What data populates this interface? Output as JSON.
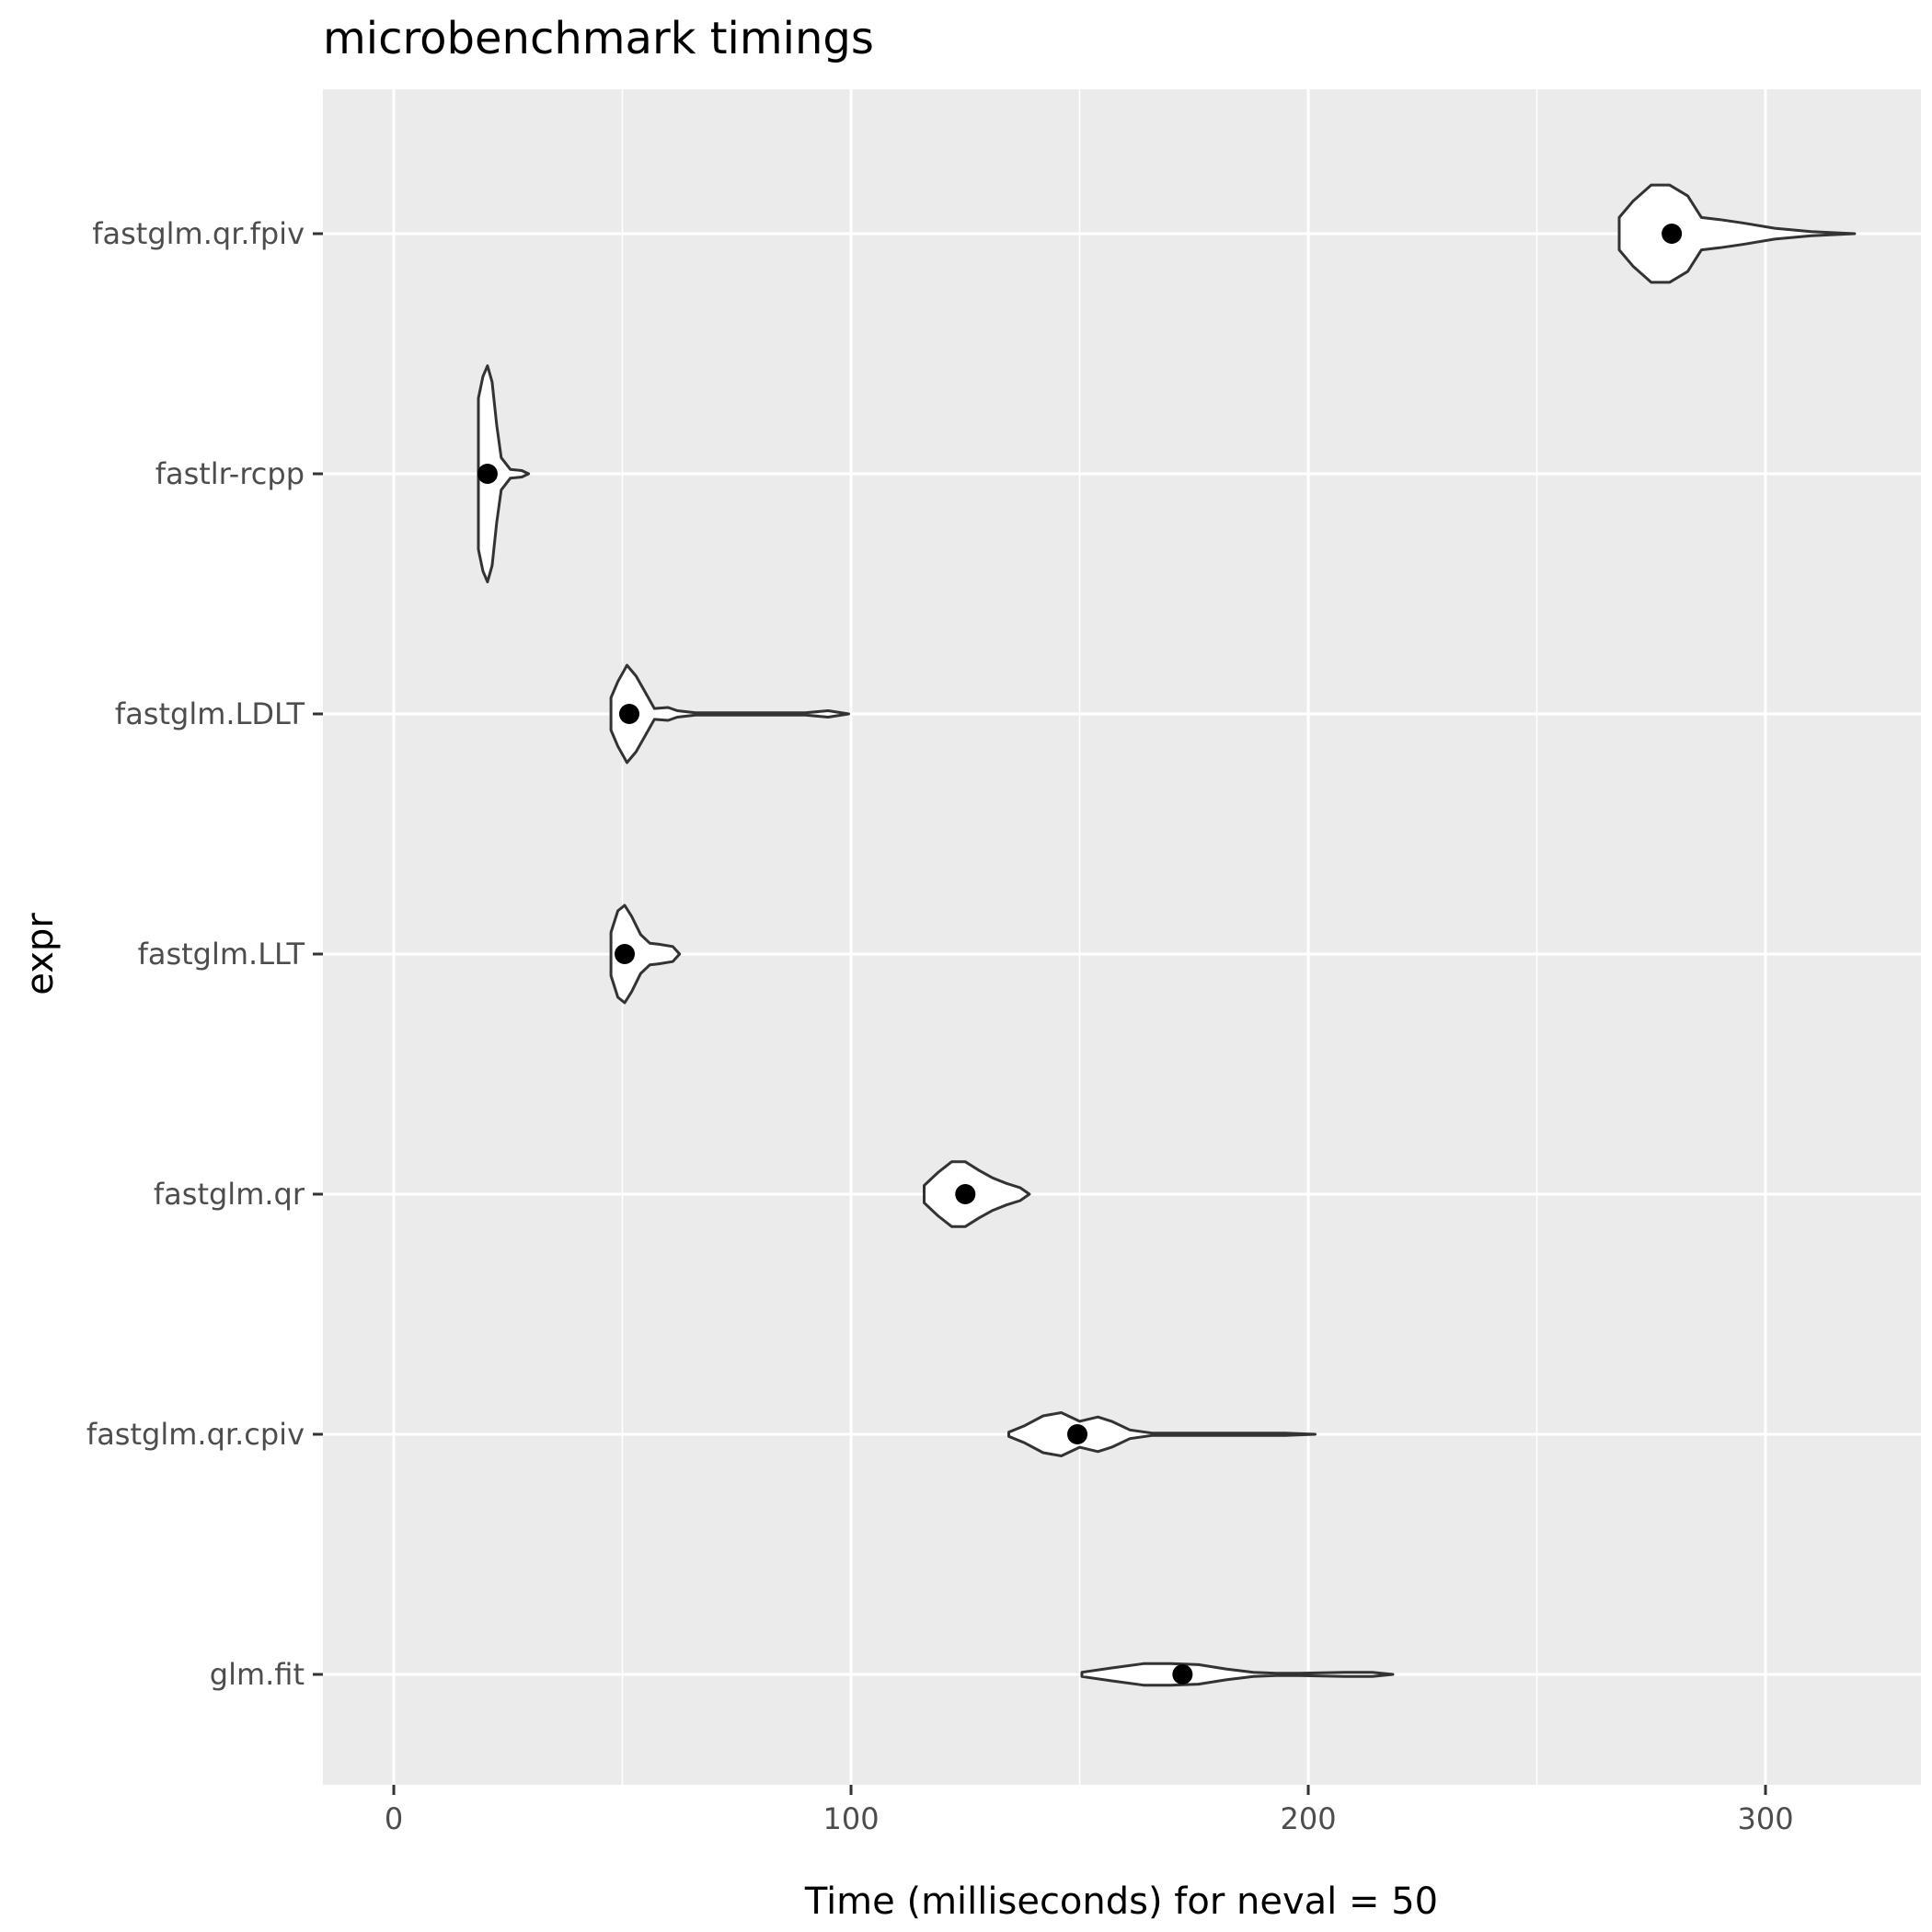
{
  "chart_data": {
    "type": "violin",
    "title": "microbenchmark timings",
    "xlabel": "Time (milliseconds) for neval = 50",
    "ylabel": "expr",
    "xlim": [
      -15.5,
      334
    ],
    "x_ticks": [
      0,
      100,
      200,
      300
    ],
    "x_tick_labels": [
      "0",
      "100",
      "200",
      "300"
    ],
    "grid": true,
    "categories": [
      "fastglm.qr.fpiv",
      "fastlr-rcpp",
      "fastglm.LDLT",
      "fastglm.LLT",
      "fastglm.qr",
      "fastglm.qr.cpiv",
      "glm.fit"
    ],
    "series": [
      {
        "category": "fastglm.qr.fpiv",
        "median": 279.5,
        "min": 268,
        "max": 319.5,
        "density": [
          [
            268,
            0.15
          ],
          [
            271,
            0.3
          ],
          [
            275,
            0.45
          ],
          [
            279,
            0.45
          ],
          [
            283,
            0.35
          ],
          [
            286,
            0.15
          ],
          [
            290,
            0.13
          ],
          [
            295,
            0.1
          ],
          [
            302,
            0.05
          ],
          [
            310,
            0.02
          ],
          [
            319.5,
            0
          ]
        ]
      },
      {
        "category": "fastlr-rcpp",
        "median": 20.5,
        "min": 18.5,
        "max": 29.5,
        "density": [
          [
            18.5,
            0.7
          ],
          [
            19.5,
            0.9
          ],
          [
            20.5,
            1.0
          ],
          [
            21.5,
            0.85
          ],
          [
            22.5,
            0.45
          ],
          [
            23.5,
            0.15
          ],
          [
            25.5,
            0.04
          ],
          [
            28,
            0.03
          ],
          [
            29.5,
            0
          ]
        ]
      },
      {
        "category": "fastglm.LDLT",
        "median": 51.5,
        "min": 47.5,
        "max": 99.5,
        "density": [
          [
            47.5,
            0.15
          ],
          [
            49,
            0.3
          ],
          [
            51,
            0.45
          ],
          [
            53,
            0.35
          ],
          [
            55,
            0.2
          ],
          [
            57,
            0.05
          ],
          [
            60,
            0.06
          ],
          [
            62,
            0.03
          ],
          [
            66,
            0.01
          ],
          [
            90,
            0.01
          ],
          [
            95,
            0.03
          ],
          [
            99.5,
            0
          ]
        ]
      },
      {
        "category": "fastglm.LLT",
        "median": 50.5,
        "min": 47.5,
        "max": 62.5,
        "density": [
          [
            47.5,
            0.2
          ],
          [
            49,
            0.4
          ],
          [
            50.5,
            0.45
          ],
          [
            52,
            0.35
          ],
          [
            54,
            0.18
          ],
          [
            56,
            0.1
          ],
          [
            58,
            0.09
          ],
          [
            61,
            0.07
          ],
          [
            62.5,
            0
          ]
        ]
      },
      {
        "category": "fastglm.qr",
        "median": 125,
        "min": 116,
        "max": 139,
        "density": [
          [
            116,
            0.08
          ],
          [
            119,
            0.2
          ],
          [
            122,
            0.3
          ],
          [
            125,
            0.3
          ],
          [
            128,
            0.22
          ],
          [
            131,
            0.15
          ],
          [
            134,
            0.1
          ],
          [
            137,
            0.06
          ],
          [
            139,
            0
          ]
        ]
      },
      {
        "category": "fastglm.qr.cpiv",
        "median": 149.5,
        "min": 134.5,
        "max": 201.5,
        "density": [
          [
            134.5,
            0.02
          ],
          [
            138,
            0.08
          ],
          [
            142,
            0.17
          ],
          [
            146,
            0.2
          ],
          [
            150,
            0.12
          ],
          [
            154,
            0.16
          ],
          [
            157,
            0.12
          ],
          [
            161,
            0.04
          ],
          [
            166,
            0.01
          ],
          [
            180,
            0.01
          ],
          [
            195,
            0.01
          ],
          [
            201.5,
            0
          ]
        ]
      },
      {
        "category": "glm.fit",
        "median": 172.5,
        "min": 150.5,
        "max": 218.5,
        "density": [
          [
            150.5,
            0.02
          ],
          [
            157,
            0.06
          ],
          [
            164,
            0.1
          ],
          [
            170,
            0.1
          ],
          [
            176,
            0.09
          ],
          [
            182,
            0.05
          ],
          [
            188,
            0.02
          ],
          [
            193,
            0.01
          ],
          [
            198,
            0.01
          ],
          [
            208,
            0.02
          ],
          [
            214,
            0.02
          ],
          [
            218.5,
            0
          ]
        ]
      }
    ]
  }
}
